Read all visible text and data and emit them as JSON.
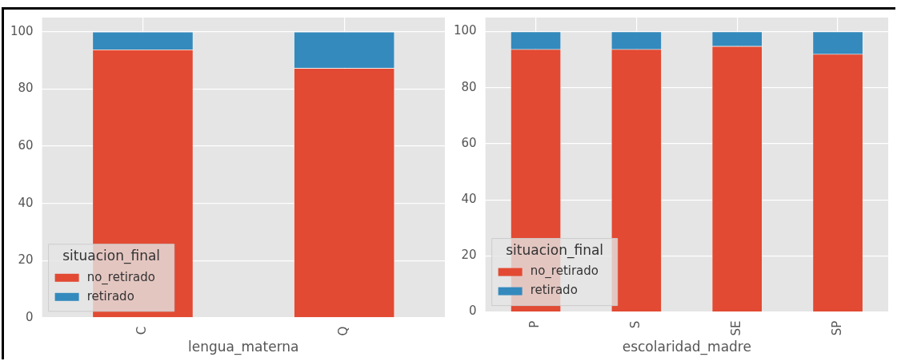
{
  "chart_data": [
    {
      "type": "bar",
      "stacked": true,
      "xlabel": "lengua_materna",
      "legend_title": "situacion_final",
      "categories": [
        "C",
        "Q"
      ],
      "series": [
        {
          "name": "no_retirado",
          "color": "#e24a33",
          "values": [
            93.8,
            87.3
          ]
        },
        {
          "name": "retirado",
          "color": "#348abd",
          "values": [
            6.2,
            12.7
          ]
        }
      ],
      "ylim": [
        0,
        105
      ],
      "yticks": [
        0,
        20,
        40,
        60,
        80,
        100
      ],
      "grid": true,
      "legend": "bottom left"
    },
    {
      "type": "bar",
      "stacked": true,
      "xlabel": "escolaridad_madre",
      "legend_title": "situacion_final",
      "categories": [
        "P",
        "S",
        "SE",
        "SP"
      ],
      "series": [
        {
          "name": "no_retirado",
          "color": "#e24a33",
          "values": [
            93.7,
            93.7,
            94.8,
            92.0
          ]
        },
        {
          "name": "retirado",
          "color": "#348abd",
          "values": [
            6.3,
            6.3,
            5.2,
            8.0
          ]
        }
      ],
      "ylim": [
        0,
        105
      ],
      "yticks": [
        0,
        20,
        40,
        60,
        80,
        100
      ],
      "grid": true,
      "legend": "bottom left"
    }
  ]
}
